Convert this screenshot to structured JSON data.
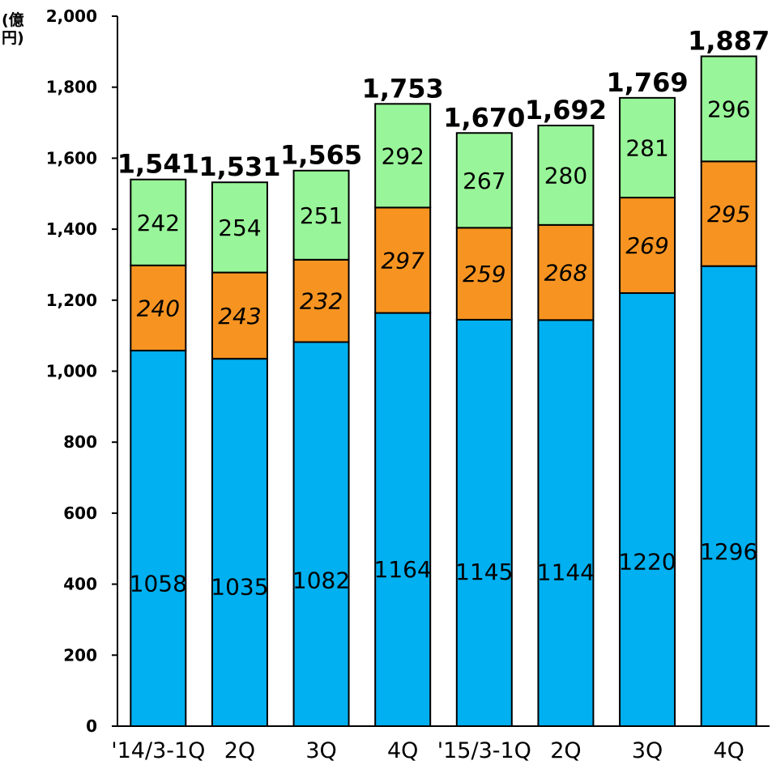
{
  "chart_data": {
    "type": "bar",
    "stacked": true,
    "categories": [
      "'14/3-1Q",
      "2Q",
      "3Q",
      "4Q",
      "'15/3-1Q",
      "2Q",
      "3Q",
      "4Q"
    ],
    "series": [
      {
        "values": [
          1058,
          1035,
          1082,
          1164,
          1145,
          1144,
          1220,
          1296
        ],
        "color": "#00b0f0"
      },
      {
        "values": [
          240,
          243,
          232,
          297,
          259,
          268,
          269,
          295
        ],
        "color": "#f79421"
      },
      {
        "values": [
          242,
          254,
          251,
          292,
          267,
          280,
          281,
          296
        ],
        "color": "#99f599"
      }
    ],
    "totals": [
      "1,541",
      "1,531",
      "1,565",
      "1,753",
      "1,670",
      "1,692",
      "1,769",
      "1,887"
    ],
    "ylabel": "(億円)",
    "ylim": [
      0,
      2000
    ],
    "yticks": [
      "0",
      "200",
      "400",
      "600",
      "800",
      "1,000",
      "1,200",
      "1,400",
      "1,600",
      "1,800",
      "2,000"
    ],
    "grid": false,
    "legend": "none"
  }
}
